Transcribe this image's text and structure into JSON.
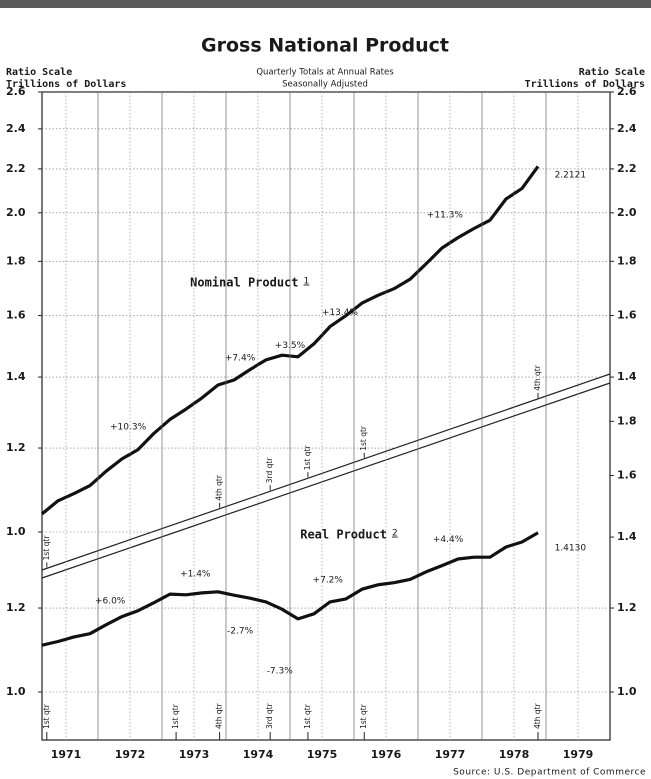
{
  "title": "Gross National Product",
  "left_axis_label": [
    "Ratio Scale",
    "Trillions of Dollars"
  ],
  "right_axis_label": [
    "Ratio Scale",
    "Trillions of Dollars"
  ],
  "subtitle": [
    "Quarterly Totals at Annual Rates",
    "Seasonally Adjusted"
  ],
  "source": "Source: U.S. Department of Commerce",
  "chart_data": [
    {
      "type": "line",
      "yscale": "log",
      "x": [
        1971.125,
        1971.375,
        1971.625,
        1971.875,
        1972.125,
        1972.375,
        1972.625,
        1972.875,
        1973.125,
        1973.375,
        1973.625,
        1973.875,
        1974.125,
        1974.375,
        1974.625,
        1974.875,
        1975.125,
        1975.375,
        1975.625,
        1975.875,
        1976.125,
        1976.375,
        1976.625,
        1976.875,
        1977.125,
        1977.375,
        1977.625,
        1977.875,
        1978.125,
        1978.375,
        1978.625,
        1978.875
      ],
      "xlim": [
        1971.125,
        1980
      ],
      "ylim": [
        1,
        2.6
      ],
      "yticks": [
        {
          "value": 1,
          "label": "1.0"
        },
        1.2,
        1.4,
        1.6,
        1.8,
        {
          "value": 2,
          "label": "2.0"
        },
        2.2,
        2.4,
        2.6
      ],
      "y2lim": [
        1,
        2.6
      ],
      "y2ticks": [
        1.4,
        1.6,
        1.8,
        {
          "value": 2,
          "label": "2.0"
        },
        2.2,
        2.4,
        2.6
      ],
      "grid": true,
      "series": [
        {
          "name": "Nominal Product",
          "note": "1",
          "color": "#111111",
          "values": [
            1.04,
            1.07,
            1.087,
            1.106,
            1.141,
            1.172,
            1.196,
            1.239,
            1.277,
            1.306,
            1.338,
            1.376,
            1.391,
            1.423,
            1.453,
            1.468,
            1.463,
            1.505,
            1.562,
            1.6,
            1.644,
            1.672,
            1.696,
            1.731,
            1.79,
            1.853,
            1.895,
            1.933,
            1.968,
            2.061,
            2.109,
            2.2121
          ],
          "label_x": 1973.44,
          "label_y": 1.717
        }
      ],
      "annotations": [
        {
          "text": "+10.3%",
          "x": 1972.47,
          "y": 1.256
        },
        {
          "text": "+7.4%",
          "x": 1974.22,
          "y": 1.459
        },
        {
          "text": "+3.5%",
          "x": 1975.0,
          "y": 1.5
        },
        {
          "text": "+13.4%",
          "x": 1975.78,
          "y": 1.61
        },
        {
          "text": "+11.3%",
          "x": 1977.42,
          "y": 1.99
        },
        {
          "text": "2.2121",
          "x": 1979.38,
          "y": 2.17
        }
      ]
    },
    {
      "type": "line",
      "yscale": "log",
      "x": [
        1971.125,
        1971.375,
        1971.625,
        1971.875,
        1972.125,
        1972.375,
        1972.625,
        1972.875,
        1973.125,
        1973.375,
        1973.625,
        1973.875,
        1974.125,
        1974.375,
        1974.625,
        1974.875,
        1975.125,
        1975.375,
        1975.625,
        1975.875,
        1976.125,
        1976.375,
        1976.625,
        1976.875,
        1977.125,
        1977.375,
        1977.625,
        1977.875,
        1978.125,
        1978.375,
        1978.625,
        1978.875
      ],
      "xlim": [
        1971.125,
        1980
      ],
      "xticks": [
        {
          "value": 1971.5,
          "label": "1971"
        },
        {
          "value": 1972.5,
          "label": "1972"
        },
        {
          "value": 1973.5,
          "label": "1973"
        },
        {
          "value": 1974.5,
          "label": "1974"
        },
        {
          "value": 1975.5,
          "label": "1975"
        },
        {
          "value": 1976.5,
          "label": "1976"
        },
        {
          "value": 1977.5,
          "label": "1977"
        },
        {
          "value": 1978.5,
          "label": "1978"
        },
        {
          "value": 1979.5,
          "label": "1979"
        }
      ],
      "xgrid": [
        1972,
        1973,
        1974,
        1975,
        1976,
        1977,
        1978,
        1979
      ],
      "ylim": [
        1,
        1.8
      ],
      "yticks": [
        {
          "value": 1,
          "label": "1.0"
        },
        1.2
      ],
      "y2lim": [
        1,
        1.8
      ],
      "y2ticks": [
        {
          "value": 1,
          "label": "1.0"
        },
        1.2,
        1.4,
        1.6,
        1.8
      ],
      "grid": true,
      "series": [
        {
          "name": "Real Product",
          "note": "2",
          "color": "#111111",
          "values": [
            1.107,
            1.116,
            1.127,
            1.135,
            1.157,
            1.178,
            1.193,
            1.214,
            1.237,
            1.235,
            1.24,
            1.243,
            1.234,
            1.226,
            1.216,
            1.197,
            1.172,
            1.185,
            1.216,
            1.224,
            1.25,
            1.262,
            1.268,
            1.277,
            1.298,
            1.316,
            1.335,
            1.34,
            1.34,
            1.37,
            1.385,
            1.413
          ],
          "label_x": 1975.16,
          "label_y": 1.406
        }
      ],
      "annotations": [
        {
          "text": "+6.0%",
          "x": 1972.19,
          "y": 1.218
        },
        {
          "text": "+1.4%",
          "x": 1973.52,
          "y": 1.292
        },
        {
          "text": "-2.7%",
          "x": 1974.22,
          "y": 1.142
        },
        {
          "text": "-7.3%",
          "x": 1974.84,
          "y": 1.047
        },
        {
          "text": "+7.2%",
          "x": 1975.59,
          "y": 1.276
        },
        {
          "text": "+4.4%",
          "x": 1977.47,
          "y": 1.393
        },
        {
          "text": "1.4130",
          "x": 1979.38,
          "y": 1.367
        }
      ],
      "diagonal_markers": [
        {
          "text": "1st qtr",
          "x": 1971.2
        },
        {
          "text": "4th qtr",
          "x": 1973.9
        },
        {
          "text": "3rd qtr",
          "x": 1974.69
        },
        {
          "text": "1st qtr",
          "x": 1975.28
        },
        {
          "text": "1st qtr",
          "x": 1976.16
        },
        {
          "text": "4th qtr",
          "x": 1978.875
        }
      ],
      "bottom_markers": [
        {
          "text": "1st qtr",
          "x": 1971.2
        },
        {
          "text": "1st qtr",
          "x": 1973.22
        },
        {
          "text": "4th qtr",
          "x": 1973.9
        },
        {
          "text": "3rd qtr",
          "x": 1974.69
        },
        {
          "text": "1st qtr",
          "x": 1975.28
        },
        {
          "text": "1st qtr",
          "x": 1976.16
        },
        {
          "text": "4th qtr",
          "x": 1978.875
        }
      ]
    }
  ]
}
